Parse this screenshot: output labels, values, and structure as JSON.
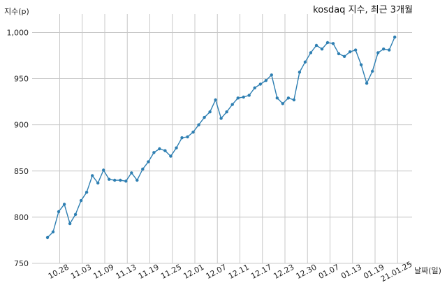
{
  "chart_data": {
    "type": "line",
    "title": "kosdaq 지수, 최근 3개월",
    "xlabel": "날짜(일)",
    "ylabel": "지수(p)",
    "ylim": [
      750,
      1020
    ],
    "yticks": [
      750,
      800,
      850,
      900,
      950,
      1000
    ],
    "ytick_labels": [
      "750",
      "800",
      "850",
      "900",
      "950",
      "1,000"
    ],
    "xticks": [
      "10.28",
      "11.03",
      "11.09",
      "11.13",
      "11.19",
      "11.25",
      "12.01",
      "12.07",
      "12.11",
      "12.17",
      "12.23",
      "12.30",
      "01.07",
      "01.13",
      "01.19",
      "21.01.25"
    ],
    "grid": true,
    "line_color": "#2e7fb2",
    "series": [
      {
        "values": [
          778,
          784,
          806,
          814,
          793,
          803,
          818,
          827,
          845,
          837,
          851,
          841,
          840,
          840,
          839,
          848,
          840,
          852,
          860,
          870,
          874,
          872,
          866,
          875,
          886,
          887,
          892,
          900,
          908,
          914,
          927,
          907,
          914,
          922,
          929,
          930,
          932,
          940,
          944,
          948,
          954,
          929,
          923,
          929,
          927,
          957,
          968,
          978,
          986,
          982,
          989,
          988,
          977,
          974,
          979,
          981,
          965,
          945,
          958,
          978,
          982,
          981,
          995
        ]
      }
    ]
  }
}
